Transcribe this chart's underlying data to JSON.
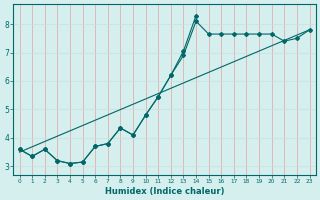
{
  "xlabel": "Humidex (Indice chaleur)",
  "bg_color": "#d5eeee",
  "grid_color_v": "#e8a0a0",
  "grid_color_h": "#c8e0e0",
  "line_color": "#006868",
  "xlim": [
    -0.5,
    23.5
  ],
  "ylim": [
    2.7,
    8.7
  ],
  "xticks": [
    0,
    1,
    2,
    3,
    4,
    5,
    6,
    7,
    8,
    9,
    10,
    11,
    12,
    13,
    14,
    15,
    16,
    17,
    18,
    19,
    20,
    21,
    22,
    23
  ],
  "yticks": [
    3,
    4,
    5,
    6,
    7,
    8
  ],
  "line1_x": [
    0,
    1,
    2,
    3,
    4,
    5,
    6,
    7,
    8,
    9,
    10,
    11,
    12,
    13,
    14,
    15,
    16,
    17,
    18,
    19,
    20,
    21,
    22,
    23
  ],
  "line1_y": [
    3.6,
    3.35,
    3.6,
    3.2,
    3.1,
    3.15,
    3.7,
    3.8,
    4.35,
    4.1,
    4.8,
    5.45,
    6.2,
    6.9,
    8.1,
    7.65,
    7.65,
    7.65,
    7.65,
    7.65,
    7.65,
    7.4,
    7.5,
    7.8
  ],
  "line2_x": [
    0,
    1,
    2,
    3,
    4,
    5,
    6,
    7,
    8,
    9,
    10,
    11,
    12,
    13,
    14
  ],
  "line2_y": [
    3.6,
    3.35,
    3.6,
    3.2,
    3.1,
    3.15,
    3.7,
    3.8,
    4.35,
    4.1,
    4.8,
    5.45,
    6.2,
    7.05,
    8.3
  ],
  "line3_x": [
    0,
    23
  ],
  "line3_y": [
    3.5,
    7.8
  ]
}
